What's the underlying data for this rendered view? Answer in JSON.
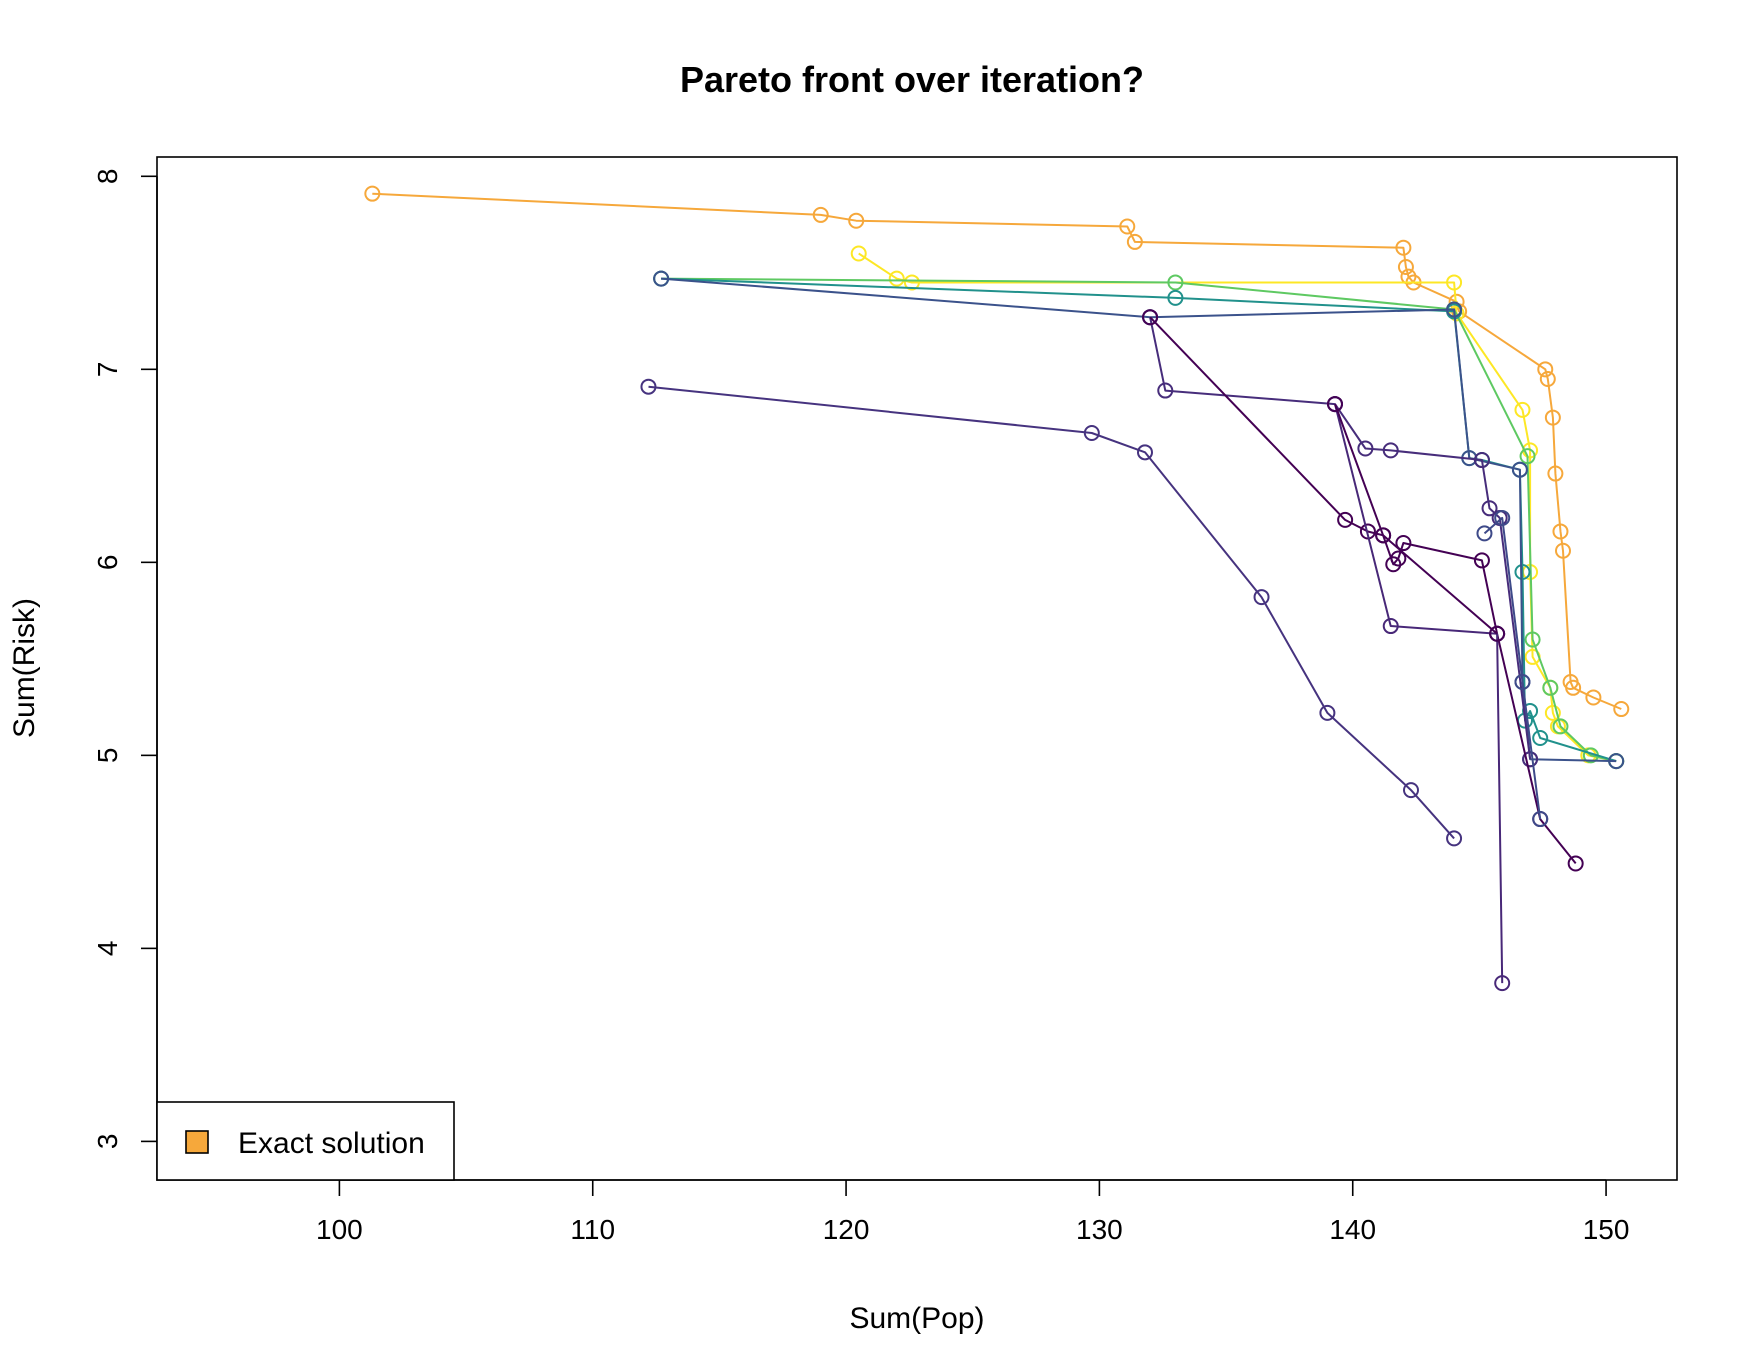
{
  "chart_data": {
    "type": "line",
    "title": "Pareto front over iteration?",
    "xlabel": "Sum(Pop)",
    "ylabel": "Sum(Risk)",
    "xlim": [
      92.8,
      152.8
    ],
    "ylim": [
      2.8,
      8.1
    ],
    "xticks": [
      100,
      110,
      120,
      130,
      140,
      150
    ],
    "yticks": [
      3,
      4,
      5,
      6,
      7,
      8
    ],
    "grid": false,
    "legend": {
      "position": "bottom-left",
      "entries": [
        {
          "label": "Exact solution",
          "color": "#F6A83B"
        }
      ]
    },
    "series": [
      {
        "color": "#F6A83B",
        "points": [
          [
            101.3,
            7.91
          ],
          [
            119.0,
            7.8
          ],
          [
            120.4,
            7.77
          ],
          [
            131.1,
            7.74
          ],
          [
            131.4,
            7.66
          ],
          [
            142.0,
            7.63
          ],
          [
            142.1,
            7.53
          ],
          [
            142.2,
            7.48
          ],
          [
            142.4,
            7.45
          ],
          [
            144.1,
            7.35
          ],
          [
            144.2,
            7.3
          ],
          [
            147.6,
            7.0
          ],
          [
            147.7,
            6.95
          ],
          [
            147.9,
            6.75
          ],
          [
            148.0,
            6.46
          ],
          [
            148.2,
            6.16
          ],
          [
            148.3,
            6.06
          ],
          [
            148.6,
            5.38
          ],
          [
            148.7,
            5.35
          ],
          [
            149.5,
            5.3
          ],
          [
            150.6,
            5.24
          ]
        ]
      },
      {
        "color": "#FDE725",
        "points": [
          [
            120.5,
            7.6
          ],
          [
            122.0,
            7.47
          ],
          [
            122.6,
            7.45
          ],
          [
            144.0,
            7.45
          ],
          [
            144.1,
            7.29
          ],
          [
            146.7,
            6.79
          ],
          [
            147.0,
            6.58
          ],
          [
            147.0,
            5.95
          ],
          [
            147.1,
            5.51
          ],
          [
            147.8,
            5.35
          ],
          [
            147.9,
            5.22
          ],
          [
            148.1,
            5.15
          ],
          [
            149.3,
            5.0
          ],
          [
            150.4,
            4.97
          ]
        ]
      },
      {
        "color": "#5EC962",
        "points": [
          [
            112.7,
            7.47
          ],
          [
            133.0,
            7.45
          ],
          [
            144.0,
            7.31
          ],
          [
            146.9,
            6.55
          ],
          [
            147.1,
            5.6
          ],
          [
            147.8,
            5.35
          ],
          [
            148.2,
            5.15
          ],
          [
            149.4,
            5.0
          ],
          [
            150.4,
            4.97
          ]
        ]
      },
      {
        "color": "#21918C",
        "points": [
          [
            112.7,
            7.47
          ],
          [
            133.0,
            7.37
          ],
          [
            144.0,
            7.3
          ],
          [
            144.6,
            6.54
          ],
          [
            145.1,
            6.53
          ],
          [
            146.6,
            6.48
          ],
          [
            146.7,
            5.95
          ],
          [
            146.8,
            5.18
          ],
          [
            147.0,
            5.23
          ],
          [
            147.4,
            5.09
          ],
          [
            150.4,
            4.97
          ]
        ]
      },
      {
        "color": "#3B528B",
        "points": [
          [
            112.7,
            7.47
          ],
          [
            132.0,
            7.27
          ],
          [
            144.0,
            7.31
          ],
          [
            144.6,
            6.54
          ],
          [
            146.6,
            6.48
          ],
          [
            146.7,
            5.38
          ],
          [
            147.0,
            4.98
          ],
          [
            150.4,
            4.97
          ]
        ]
      },
      {
        "color": "#472D7B",
        "points": [
          [
            132.0,
            7.27
          ],
          [
            132.6,
            6.89
          ],
          [
            139.3,
            6.82
          ],
          [
            140.5,
            6.59
          ],
          [
            141.5,
            6.58
          ],
          [
            145.1,
            6.53
          ],
          [
            145.4,
            6.28
          ],
          [
            145.8,
            6.23
          ],
          [
            147.0,
            4.98
          ]
        ]
      },
      {
        "color": "#440154",
        "points": [
          [
            132.0,
            7.27
          ],
          [
            139.7,
            6.22
          ],
          [
            140.6,
            6.16
          ],
          [
            141.2,
            6.14
          ],
          [
            141.6,
            5.99
          ],
          [
            141.8,
            6.02
          ],
          [
            142.0,
            6.1
          ],
          [
            145.1,
            6.01
          ],
          [
            145.7,
            5.63
          ],
          [
            147.4,
            4.67
          ],
          [
            148.8,
            4.44
          ]
        ]
      },
      {
        "color": "#482878",
        "points": [
          [
            139.3,
            6.82
          ],
          [
            141.5,
            5.67
          ],
          [
            145.7,
            5.63
          ],
          [
            145.9,
            3.82
          ]
        ]
      },
      {
        "color": "#440154",
        "points": [
          [
            139.3,
            6.82
          ],
          [
            141.2,
            6.14
          ],
          [
            145.7,
            5.63
          ]
        ]
      },
      {
        "color": "#46337F",
        "points": [
          [
            112.2,
            6.91
          ],
          [
            129.7,
            6.67
          ],
          [
            131.8,
            6.57
          ],
          [
            136.4,
            5.82
          ],
          [
            139.0,
            5.22
          ],
          [
            142.3,
            4.82
          ],
          [
            144.0,
            4.57
          ]
        ]
      },
      {
        "color": "#3E4A89",
        "points": [
          [
            145.2,
            6.15
          ],
          [
            145.9,
            6.23
          ],
          [
            146.7,
            5.38
          ],
          [
            147.4,
            4.67
          ]
        ]
      }
    ]
  }
}
